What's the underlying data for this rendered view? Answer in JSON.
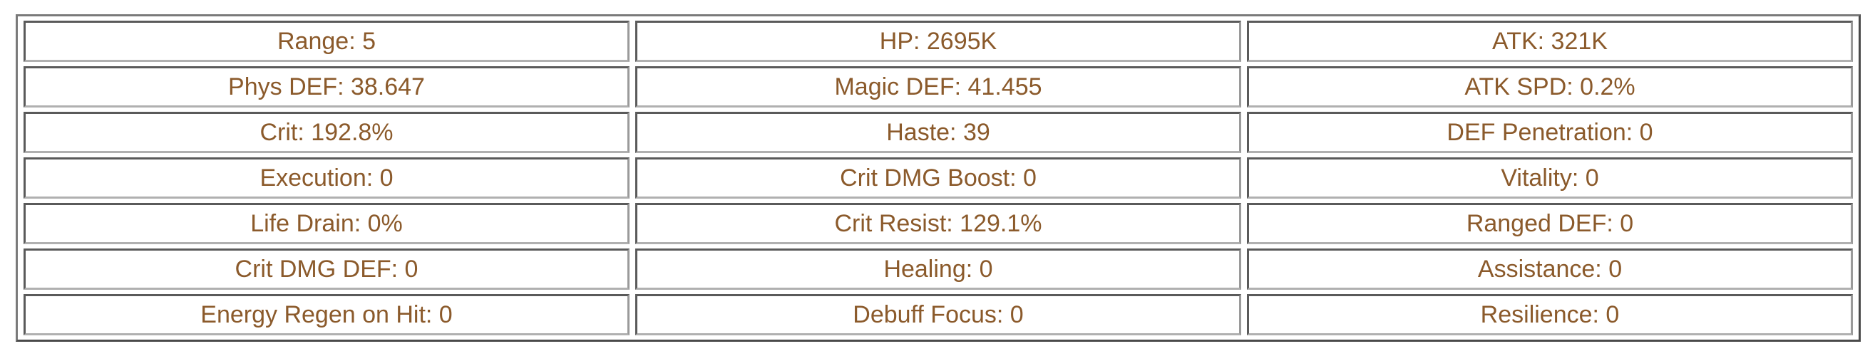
{
  "stats": [
    [
      "Range: 5",
      "HP: 2695K",
      "ATK: 321K"
    ],
    [
      "Phys DEF: 38.647",
      "Magic DEF: 41.455",
      "ATK SPD: 0.2%"
    ],
    [
      "Crit: 192.8%",
      "Haste: 39",
      "DEF Penetration: 0"
    ],
    [
      "Execution: 0",
      "Crit DMG Boost: 0",
      "Vitality: 0"
    ],
    [
      "Life Drain: 0%",
      "Crit Resist: 129.1%",
      "Ranged DEF: 0"
    ],
    [
      "Crit DMG DEF: 0",
      "Healing: 0",
      "Assistance: 0"
    ],
    [
      "Energy Regen on Hit: 0",
      "Debuff Focus: 0",
      "Resilience: 0"
    ]
  ],
  "colors": {
    "text": "#8b5a2b",
    "border": "#555555"
  }
}
